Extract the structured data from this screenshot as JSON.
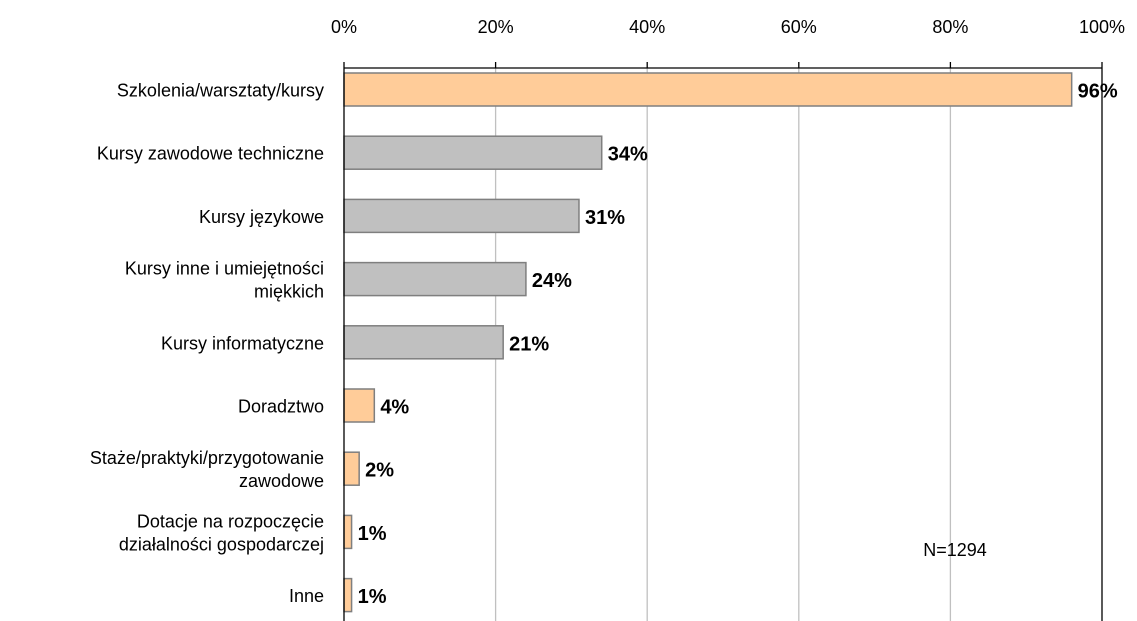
{
  "chart_data": {
    "type": "bar",
    "orientation": "horizontal",
    "title": "",
    "xlabel": "",
    "ylabel": "",
    "xlim": [
      0,
      100
    ],
    "x_ticks": [
      0,
      20,
      40,
      60,
      80,
      100
    ],
    "tick_labels": [
      "0%",
      "20%",
      "40%",
      "60%",
      "80%",
      "100%"
    ],
    "grid": true,
    "note": "N=1294",
    "categories": [
      [
        "Szkolenia/warsztaty/kursy"
      ],
      [
        "Kursy zawodowe techniczne"
      ],
      [
        "Kursy językowe"
      ],
      [
        "Kursy inne i umiejętności",
        "miękkich"
      ],
      [
        "Kursy informatyczne"
      ],
      [
        "Doradztwo"
      ],
      [
        "Staże/praktyki/przygotowanie",
        "zawodowe"
      ],
      [
        "Dotacje na rozpoczęcie",
        "działalności gospodarczej"
      ],
      [
        "Inne"
      ]
    ],
    "values": [
      96,
      34,
      31,
      24,
      21,
      4,
      2,
      1,
      1
    ],
    "data_labels": [
      "96%",
      "34%",
      "31%",
      "24%",
      "21%",
      "4%",
      "2%",
      "1%",
      "1%"
    ],
    "colors": [
      "#FFCC99",
      "#C0C0C0",
      "#C0C0C0",
      "#C0C0C0",
      "#C0C0C0",
      "#FFCC99",
      "#FFCC99",
      "#FFCC99",
      "#FFCC99"
    ],
    "bar_stroke": "#7f7f7f",
    "gridline_color": "#c0c0c0",
    "axis_color": "#000000"
  }
}
